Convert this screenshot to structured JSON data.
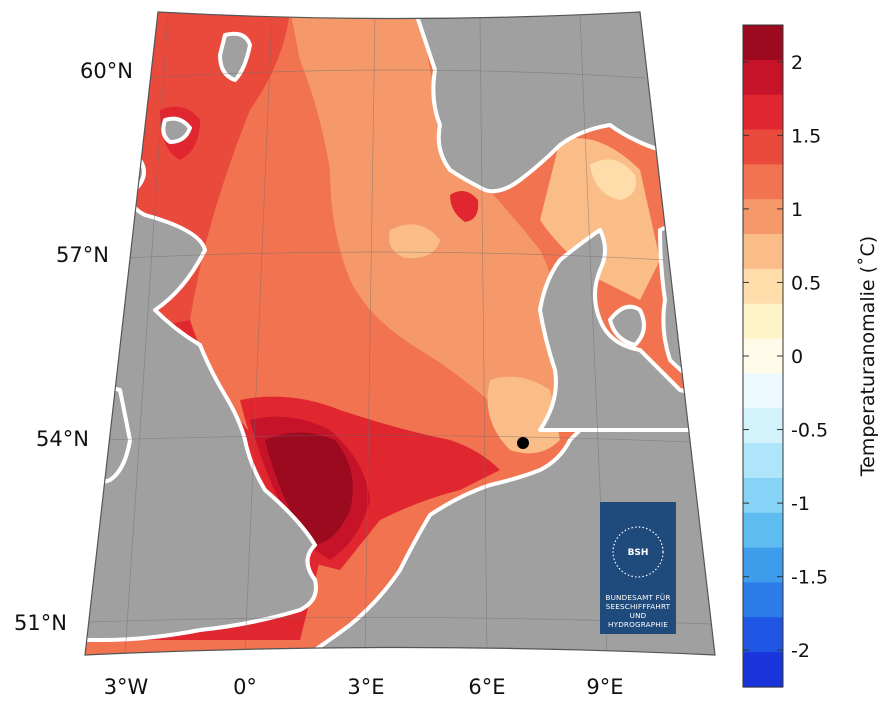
{
  "map": {
    "lat_labels": [
      "60°N",
      "57°N",
      "54°N",
      "51°N"
    ],
    "lon_labels": [
      "3°W",
      "0°",
      "3°E",
      "6°E",
      "9°E"
    ],
    "marker": {
      "name": "station",
      "lon": 7.0,
      "lat": 54.2
    }
  },
  "colorbar": {
    "title": "Temperaturanomalie (˚C)",
    "ticks": [
      "2",
      "1.5",
      "1",
      "0.5",
      "0",
      "-0.5",
      "-1",
      "-1.5",
      "-2"
    ],
    "range": [
      -2.25,
      2.25
    ],
    "step": 0.25,
    "colors": [
      "#9b0a1f",
      "#c71329",
      "#e0262f",
      "#ea4a3c",
      "#f17350",
      "#f6996a",
      "#fbbd88",
      "#feddaa",
      "#fff4c8",
      "#fffbe8",
      "#ecfaff",
      "#d2f2fc",
      "#aee5fa",
      "#85d3f6",
      "#5ebcf0",
      "#3e9deb",
      "#2b7be8",
      "#1f56e4",
      "#1a34dc"
    ]
  },
  "logo": {
    "mark": "BSH",
    "lines": [
      "BUNDESAMT FÜR",
      "SEESCHIFFFAHRT",
      "UND",
      "HYDROGRAPHIE"
    ],
    "bg_color": "#1f4a7c"
  },
  "colors": {
    "land": "#a0a0a0",
    "coast_gap": "#ffffff"
  }
}
